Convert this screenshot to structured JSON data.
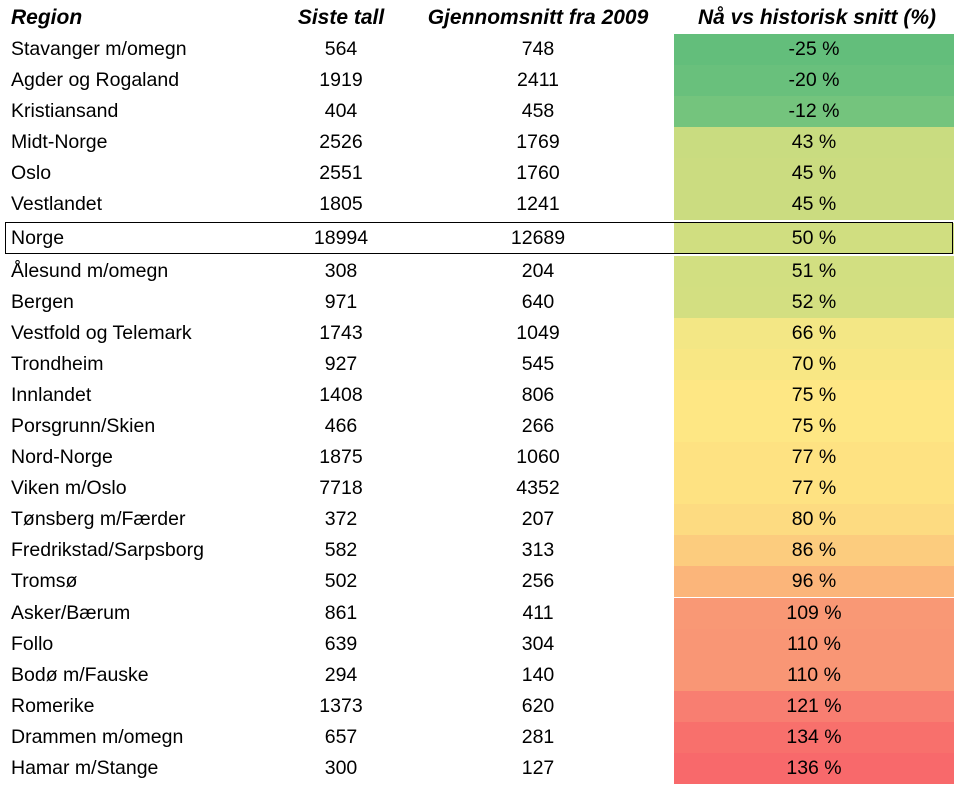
{
  "headers": {
    "region": "Region",
    "siste": "Siste tall",
    "snitt": "Gjennomsnitt fra 2009",
    "pct": "Nå vs historisk snitt (%)"
  },
  "rows": [
    {
      "region": "Stavanger m/omegn",
      "siste": "564",
      "snitt": "748",
      "pct": "-25 %",
      "color": "#63be7b"
    },
    {
      "region": "Agder og Rogaland",
      "siste": "1919",
      "snitt": "2411",
      "pct": "-20 %",
      "color": "#69c07c"
    },
    {
      "region": "Kristiansand",
      "siste": "404",
      "snitt": "458",
      "pct": "-12 %",
      "color": "#74c47d"
    },
    {
      "region": "Midt-Norge",
      "siste": "2526",
      "snitt": "1769",
      "pct": "43 %",
      "color": "#c9dc80"
    },
    {
      "region": "Oslo",
      "siste": "2551",
      "snitt": "1760",
      "pct": "45 %",
      "color": "#cbdc80"
    },
    {
      "region": "Vestlandet",
      "siste": "1805",
      "snitt": "1241",
      "pct": "45 %",
      "color": "#cbdc80"
    },
    {
      "region": "Norge",
      "siste": "18994",
      "snitt": "12689",
      "pct": "50 %",
      "color": "#d0de80"
    },
    {
      "region": "Ålesund m/omegn",
      "siste": "308",
      "snitt": "204",
      "pct": "51 %",
      "color": "#d2df81"
    },
    {
      "region": "Bergen",
      "siste": "971",
      "snitt": "640",
      "pct": "52 %",
      "color": "#d3df81"
    },
    {
      "region": "Vestfold og Telemark",
      "siste": "1743",
      "snitt": "1049",
      "pct": "66 %",
      "color": "#f3e785"
    },
    {
      "region": "Trondheim",
      "siste": "927",
      "snitt": "545",
      "pct": "70 %",
      "color": "#f8e784"
    },
    {
      "region": "Innlandet",
      "siste": "1408",
      "snitt": "806",
      "pct": "75 %",
      "color": "#fee784"
    },
    {
      "region": "Porsgrunn/Skien",
      "siste": "466",
      "snitt": "266",
      "pct": "75 %",
      "color": "#fee784"
    },
    {
      "region": "Nord-Norge",
      "siste": "1875",
      "snitt": "1060",
      "pct": "77 %",
      "color": "#fee282"
    },
    {
      "region": "Viken m/Oslo",
      "siste": "7718",
      "snitt": "4352",
      "pct": "77 %",
      "color": "#fee282"
    },
    {
      "region": "Tønsberg m/Færder",
      "siste": "372",
      "snitt": "207",
      "pct": "80 %",
      "color": "#fddb81"
    },
    {
      "region": "Fredrikstad/Sarpsborg",
      "siste": "582",
      "snitt": "313",
      "pct": "86 %",
      "color": "#fccc7e"
    },
    {
      "region": "Tromsø",
      "siste": "502",
      "snitt": "256",
      "pct": "96 %",
      "color": "#fbb57a"
    },
    {
      "region": "Asker/Bærum",
      "siste": "861",
      "snitt": "411",
      "pct": "109 %",
      "color": "#f99875"
    },
    {
      "region": "Follo",
      "siste": "639",
      "snitt": "304",
      "pct": "110 %",
      "color": "#f99675"
    },
    {
      "region": "Bodø m/Fauske",
      "siste": "294",
      "snitt": "140",
      "pct": "110 %",
      "color": "#f99675"
    },
    {
      "region": "Romerike",
      "siste": "1373",
      "snitt": "620",
      "pct": "121 %",
      "color": "#f87e71"
    },
    {
      "region": "Drammen m/omegn",
      "siste": "657",
      "snitt": "281",
      "pct": "134 %",
      "color": "#f8706c"
    },
    {
      "region": "Hamar m/Stange",
      "siste": "300",
      "snitt": "127",
      "pct": "136 %",
      "color": "#f8696b"
    }
  ]
}
